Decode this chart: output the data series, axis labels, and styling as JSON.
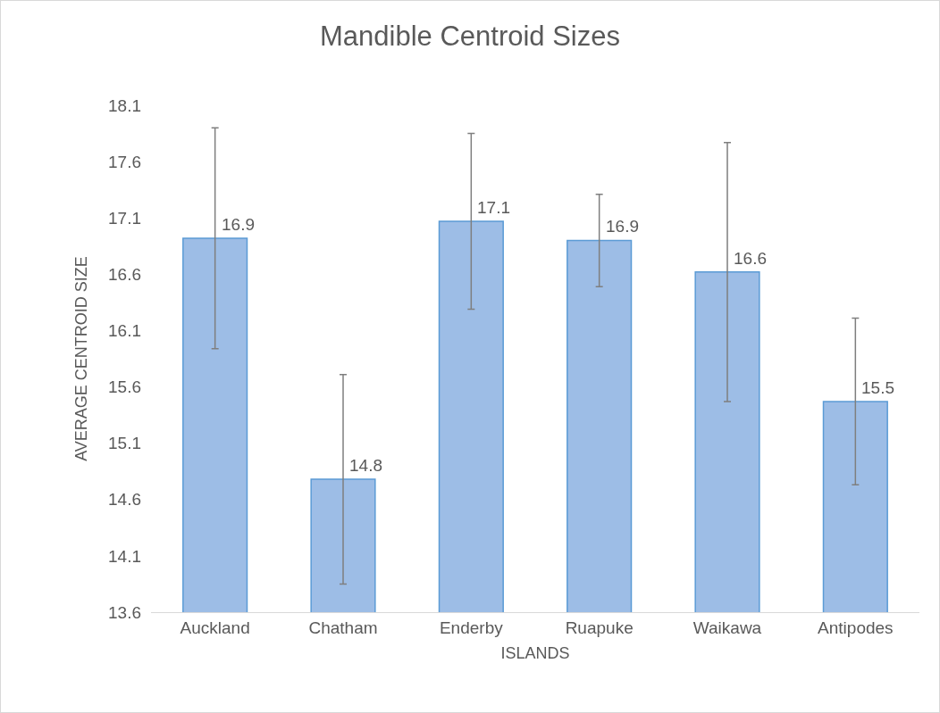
{
  "chart_data": {
    "type": "bar",
    "title": "Mandible Centroid Sizes",
    "xlabel": "ISLANDS",
    "ylabel": "AVERAGE CENTROID SIZE",
    "categories": [
      "Auckland",
      "Chatham",
      "Enderby",
      "Ruapuke",
      "Waikawa",
      "Antipodes"
    ],
    "values": [
      16.92,
      14.78,
      17.07,
      16.9,
      16.62,
      15.47
    ],
    "errors": [
      0.98,
      0.93,
      0.78,
      0.41,
      1.15,
      0.74
    ],
    "value_labels": [
      "16.9",
      "14.8",
      "17.1",
      "16.9",
      "16.6",
      "15.5"
    ],
    "color": "#9dbde6",
    "ylim": [
      13.6,
      18.1
    ],
    "yticks": [
      13.6,
      14.1,
      14.6,
      15.1,
      15.6,
      16.1,
      16.6,
      17.1,
      17.6,
      18.1
    ],
    "grid": false,
    "legend": false
  }
}
